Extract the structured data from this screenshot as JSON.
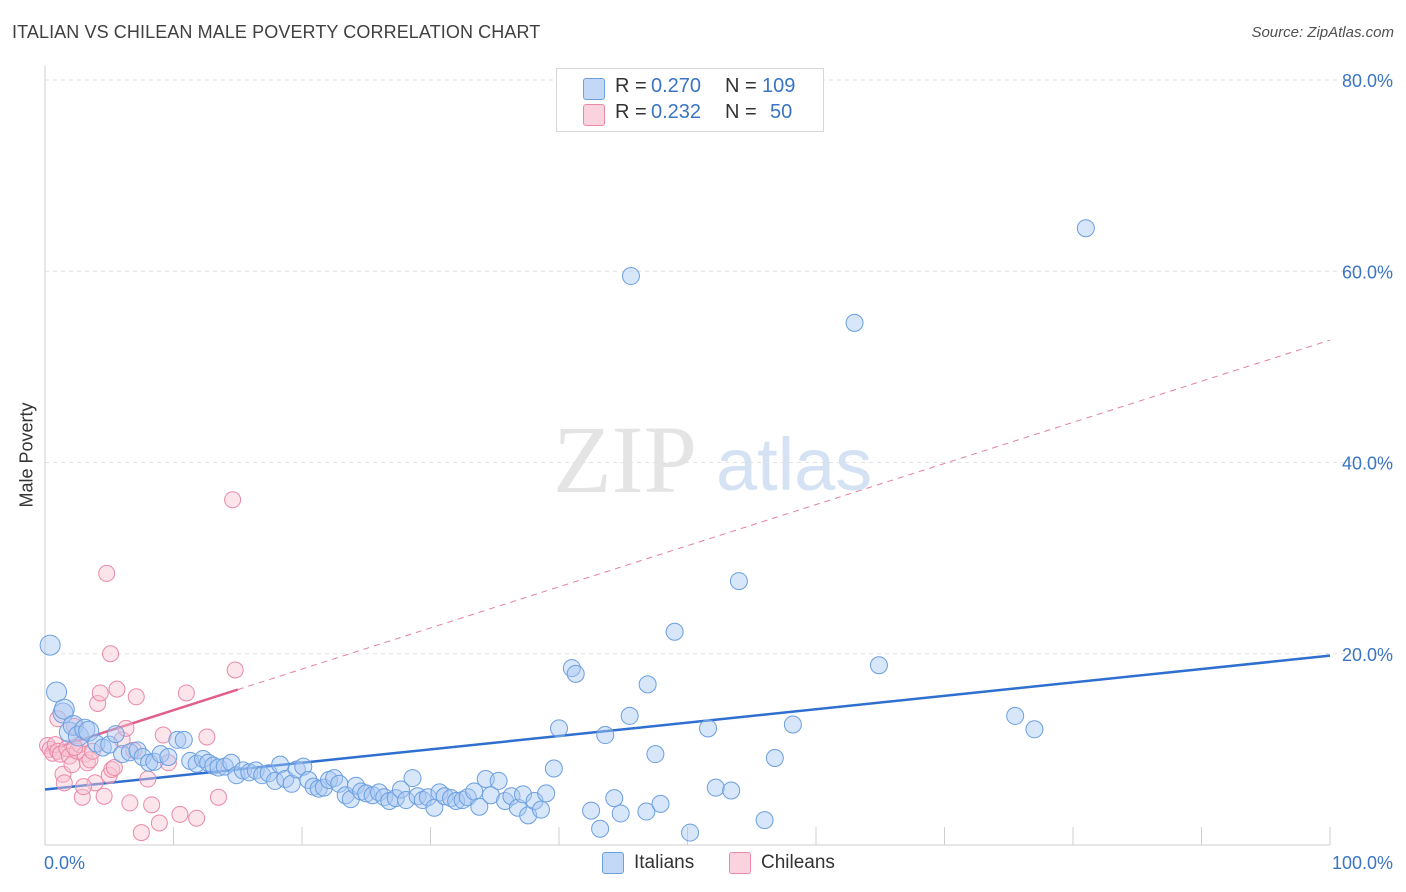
{
  "header": {
    "title": "ITALIAN VS CHILEAN MALE POVERTY CORRELATION CHART",
    "source": "Source: ZipAtlas.com"
  },
  "watermark": {
    "zip": "ZIP",
    "atlas": "atlas"
  },
  "legend": {
    "rows": [
      {
        "r_label": "R =",
        "r_value": "0.270",
        "n_label": "N =",
        "n_value": "109",
        "color": "#a9c8f1",
        "border": "#6b9fe0"
      },
      {
        "r_label": "R =",
        "r_value": "0.232",
        "n_label": "N =",
        "n_value": "50",
        "color": "#f8c3d3",
        "border": "#ea89a8"
      }
    ]
  },
  "bottom_legend": {
    "italians": "Italians",
    "chileans": "Chileans"
  },
  "chart_data": {
    "type": "scatter",
    "title": "ITALIAN VS CHILEAN MALE POVERTY CORRELATION CHART",
    "xlabel": "",
    "ylabel": "Male Poverty",
    "xlim": [
      0,
      100
    ],
    "ylim": [
      0,
      80
    ],
    "x_tick_labels": [
      "0.0%",
      "100.0%"
    ],
    "y_ticks": [
      20,
      40,
      60,
      80
    ],
    "y_tick_labels": [
      "20.0%",
      "40.0%",
      "60.0%",
      "80.0%"
    ],
    "grid": true,
    "colors": {
      "italians": "#6b9fe0",
      "chileans": "#ea89a8",
      "italians_line": "#2f6fd0",
      "chileans_line": "#e0608c",
      "tick_text": "#3a75c4"
    },
    "series": [
      {
        "name": "Italians",
        "trend": {
          "x": [
            0,
            100
          ],
          "y": [
            5.8,
            19.8
          ],
          "style": "solid"
        },
        "points": [
          [
            0.4,
            20.9
          ],
          [
            0.9,
            16.0
          ],
          [
            1.4,
            13.8
          ],
          [
            1.5,
            14.2
          ],
          [
            1.9,
            11.8
          ],
          [
            2.2,
            12.5
          ],
          [
            2.6,
            11.4
          ],
          [
            3.1,
            12.1
          ],
          [
            3.4,
            11.9
          ],
          [
            4.0,
            10.6
          ],
          [
            4.5,
            10.2
          ],
          [
            5.0,
            10.5
          ],
          [
            5.5,
            11.6
          ],
          [
            6.0,
            9.5
          ],
          [
            6.6,
            9.7
          ],
          [
            7.2,
            9.9
          ],
          [
            7.6,
            9.2
          ],
          [
            8.1,
            8.6
          ],
          [
            8.5,
            8.7
          ],
          [
            9.0,
            9.5
          ],
          [
            9.6,
            9.2
          ],
          [
            10.3,
            11.0
          ],
          [
            10.8,
            11.0
          ],
          [
            11.3,
            8.8
          ],
          [
            11.8,
            8.5
          ],
          [
            12.3,
            9.0
          ],
          [
            12.7,
            8.6
          ],
          [
            13.1,
            8.3
          ],
          [
            13.5,
            8.1
          ],
          [
            14.0,
            8.2
          ],
          [
            14.5,
            8.6
          ],
          [
            14.9,
            7.3
          ],
          [
            15.4,
            7.8
          ],
          [
            15.9,
            7.6
          ],
          [
            16.4,
            7.8
          ],
          [
            16.9,
            7.3
          ],
          [
            17.4,
            7.5
          ],
          [
            17.9,
            6.7
          ],
          [
            18.3,
            8.4
          ],
          [
            18.7,
            6.9
          ],
          [
            19.2,
            6.4
          ],
          [
            19.6,
            7.9
          ],
          [
            20.1,
            8.2
          ],
          [
            20.5,
            6.8
          ],
          [
            20.9,
            6.1
          ],
          [
            21.3,
            5.9
          ],
          [
            21.7,
            6.0
          ],
          [
            22.1,
            6.8
          ],
          [
            22.5,
            7.0
          ],
          [
            22.9,
            6.4
          ],
          [
            23.4,
            5.2
          ],
          [
            23.8,
            4.8
          ],
          [
            24.2,
            6.2
          ],
          [
            24.6,
            5.6
          ],
          [
            25.0,
            5.4
          ],
          [
            25.5,
            5.2
          ],
          [
            26.0,
            5.5
          ],
          [
            26.4,
            5.0
          ],
          [
            26.8,
            4.6
          ],
          [
            27.3,
            4.9
          ],
          [
            27.7,
            5.8
          ],
          [
            28.1,
            4.7
          ],
          [
            28.6,
            7.0
          ],
          [
            29.0,
            5.1
          ],
          [
            29.4,
            4.7
          ],
          [
            29.8,
            5.0
          ],
          [
            30.3,
            3.9
          ],
          [
            30.7,
            5.5
          ],
          [
            31.1,
            5.1
          ],
          [
            31.6,
            4.9
          ],
          [
            32.0,
            4.6
          ],
          [
            32.5,
            4.7
          ],
          [
            32.9,
            5.0
          ],
          [
            33.4,
            5.6
          ],
          [
            33.8,
            4.0
          ],
          [
            34.3,
            6.9
          ],
          [
            34.7,
            5.2
          ],
          [
            35.3,
            6.7
          ],
          [
            35.8,
            4.6
          ],
          [
            36.3,
            5.1
          ],
          [
            36.8,
            3.9
          ],
          [
            37.2,
            5.3
          ],
          [
            37.6,
            3.1
          ],
          [
            38.1,
            4.6
          ],
          [
            38.6,
            3.7
          ],
          [
            39.0,
            5.4
          ],
          [
            39.6,
            8.0
          ],
          [
            40.0,
            12.2
          ],
          [
            41.0,
            18.5
          ],
          [
            41.3,
            17.9
          ],
          [
            42.5,
            3.6
          ],
          [
            43.2,
            1.7
          ],
          [
            43.6,
            11.5
          ],
          [
            44.3,
            4.9
          ],
          [
            44.8,
            3.3
          ],
          [
            45.5,
            13.5
          ],
          [
            46.8,
            3.5
          ],
          [
            46.9,
            16.8
          ],
          [
            47.5,
            9.5
          ],
          [
            47.9,
            4.3
          ],
          [
            49.0,
            22.3
          ],
          [
            50.2,
            1.3
          ],
          [
            51.6,
            12.2
          ],
          [
            52.2,
            6.0
          ],
          [
            53.4,
            5.7
          ],
          [
            54.0,
            27.6
          ],
          [
            56.0,
            2.6
          ],
          [
            56.8,
            9.1
          ],
          [
            58.2,
            12.6
          ],
          [
            63.0,
            54.6
          ],
          [
            64.9,
            18.8
          ],
          [
            75.5,
            13.5
          ],
          [
            77.0,
            12.1
          ],
          [
            81.0,
            64.5
          ],
          [
            45.6,
            59.5
          ]
        ]
      },
      {
        "name": "Chileans",
        "trend": {
          "x": [
            0,
            100
          ],
          "y": [
            9.8,
            52.8
          ],
          "solid_until": 15
        },
        "points": [
          [
            0.2,
            10.4
          ],
          [
            0.4,
            10.0
          ],
          [
            0.6,
            9.6
          ],
          [
            0.8,
            10.5
          ],
          [
            1.0,
            9.8
          ],
          [
            1.2,
            9.5
          ],
          [
            1.4,
            7.4
          ],
          [
            1.5,
            6.5
          ],
          [
            1.7,
            10.1
          ],
          [
            1.9,
            9.3
          ],
          [
            2.1,
            8.4
          ],
          [
            2.3,
            12.4
          ],
          [
            2.5,
            9.8
          ],
          [
            2.7,
            10.5
          ],
          [
            2.9,
            5.0
          ],
          [
            3.1,
            9.5
          ],
          [
            3.3,
            8.6
          ],
          [
            3.5,
            8.9
          ],
          [
            3.7,
            9.8
          ],
          [
            3.9,
            6.5
          ],
          [
            4.1,
            14.8
          ],
          [
            4.3,
            15.9
          ],
          [
            4.6,
            5.1
          ],
          [
            4.8,
            28.4
          ],
          [
            5.0,
            7.3
          ],
          [
            5.2,
            7.9
          ],
          [
            5.4,
            8.1
          ],
          [
            5.6,
            16.3
          ],
          [
            6.0,
            11.0
          ],
          [
            6.3,
            12.2
          ],
          [
            6.6,
            4.4
          ],
          [
            6.9,
            9.9
          ],
          [
            7.1,
            15.5
          ],
          [
            7.5,
            1.3
          ],
          [
            8.0,
            6.9
          ],
          [
            8.3,
            4.2
          ],
          [
            8.9,
            2.3
          ],
          [
            9.2,
            11.5
          ],
          [
            9.6,
            8.6
          ],
          [
            10.5,
            3.2
          ],
          [
            11.0,
            15.9
          ],
          [
            11.8,
            2.8
          ],
          [
            12.6,
            11.3
          ],
          [
            13.5,
            5.0
          ],
          [
            14.6,
            36.1
          ],
          [
            14.8,
            18.3
          ],
          [
            5.1,
            20.0
          ],
          [
            2.3,
            10.2
          ],
          [
            3.0,
            6.1
          ],
          [
            1.0,
            13.2
          ]
        ]
      }
    ]
  }
}
